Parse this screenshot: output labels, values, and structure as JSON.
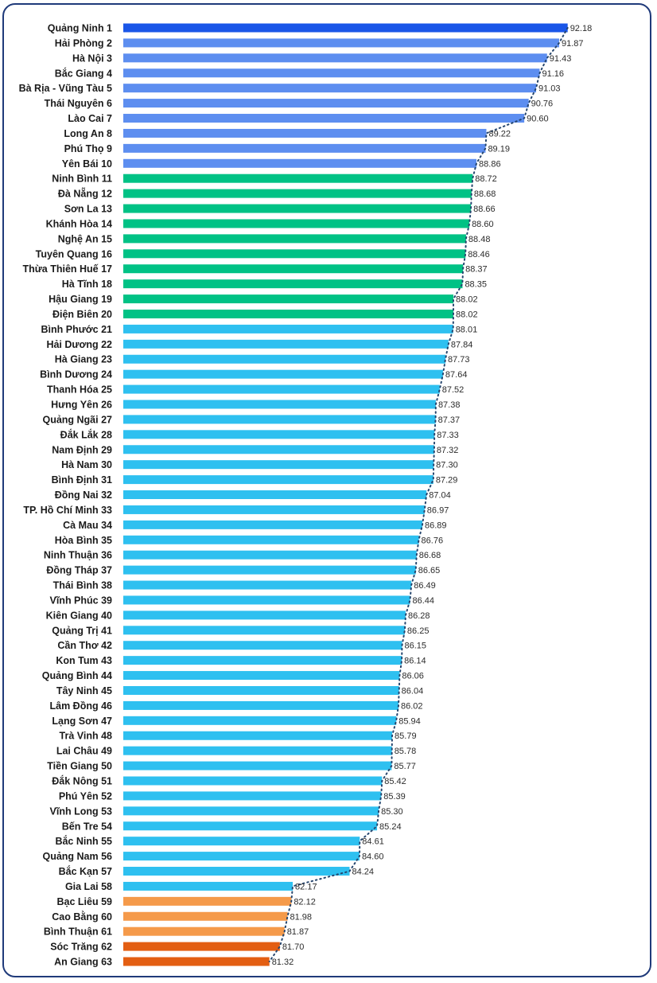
{
  "colors": {
    "top": "#1a56e8",
    "high": "#5d8ef0",
    "good": "#00c285",
    "mid": "#2ec0f0",
    "low": "#f59a4a",
    "bottom": "#e35e12",
    "frame": "#1f3a7a",
    "trend": "#26466e"
  },
  "chart_data": {
    "type": "bar",
    "orientation": "horizontal",
    "xlim": [
      76,
      93
    ],
    "grid": false,
    "trend_line": "dotted",
    "categories": [
      "Quảng Ninh 1",
      "Hải Phòng 2",
      "Hà Nội 3",
      "Bắc Giang 4",
      "Bà Rịa - Vũng Tàu 5",
      "Thái Nguyên 6",
      "Lào Cai 7",
      "Long An 8",
      "Phú Thọ 9",
      "Yên Bái 10",
      "Ninh Bình 11",
      "Đà Nẵng 12",
      "Sơn La 13",
      "Khánh Hòa 14",
      "Nghệ An 15",
      "Tuyên Quang 16",
      "Thừa Thiên Huế 17",
      "Hà Tĩnh 18",
      "Hậu Giang 19",
      "Điện Biên 20",
      "Bình Phước 21",
      "Hải Dương 22",
      "Hà Giang 23",
      "Bình Dương 24",
      "Thanh Hóa 25",
      "Hưng Yên 26",
      "Quảng Ngãi 27",
      "Đắk Lắk 28",
      "Nam Định 29",
      "Hà Nam 30",
      "Bình Định 31",
      "Đồng Nai 32",
      "TP. Hồ Chí Minh 33",
      "Cà Mau 34",
      "Hòa Bình 35",
      "Ninh Thuận 36",
      "Đồng Tháp 37",
      "Thái Bình 38",
      "Vĩnh Phúc 39",
      "Kiên Giang 40",
      "Quảng Trị 41",
      "Cần Thơ 42",
      "Kon Tum 43",
      "Quảng Bình 44",
      "Tây Ninh 45",
      "Lâm Đồng 46",
      "Lạng Sơn 47",
      "Trà Vinh 48",
      "Lai Châu 49",
      "Tiền Giang 50",
      "Đắk Nông 51",
      "Phú Yên 52",
      "Vĩnh Long 53",
      "Bến Tre 54",
      "Bắc Ninh 55",
      "Quảng Nam 56",
      "Bắc Kạn 57",
      "Gia Lai 58",
      "Bạc Liêu 59",
      "Cao Bằng 60",
      "Bình Thuận 61",
      "Sóc Trăng 62",
      "An Giang 63"
    ],
    "values": [
      92.18,
      91.87,
      91.43,
      91.16,
      91.03,
      90.76,
      90.6,
      89.22,
      89.19,
      88.86,
      88.72,
      88.68,
      88.66,
      88.6,
      88.48,
      88.46,
      88.37,
      88.35,
      88.02,
      88.02,
      88.01,
      87.84,
      87.73,
      87.64,
      87.52,
      87.38,
      87.37,
      87.33,
      87.32,
      87.3,
      87.29,
      87.04,
      86.97,
      86.89,
      86.76,
      86.68,
      86.65,
      86.49,
      86.44,
      86.28,
      86.25,
      86.15,
      86.14,
      86.06,
      86.04,
      86.02,
      85.94,
      85.79,
      85.78,
      85.77,
      85.42,
      85.39,
      85.3,
      85.24,
      84.61,
      84.6,
      84.24,
      82.17,
      82.12,
      81.98,
      81.87,
      81.7,
      81.32
    ],
    "value_labels": [
      "92.18",
      "91.87",
      "91.43",
      "91.16",
      "91.03",
      "90.76",
      "90.60",
      "89.22",
      "89.19",
      "88.86",
      "88.72",
      "88.68",
      "88.66",
      "88.60",
      "88.48",
      "88.46",
      "88.37",
      "88.35",
      "88.02",
      "88.02",
      "88.01",
      "87.84",
      "87.73",
      "87.64",
      "87.52",
      "87.38",
      "87.37",
      "87.33",
      "87.32",
      "87.30",
      "87.29",
      "87.04",
      "86.97",
      "86.89",
      "86.76",
      "86.68",
      "86.65",
      "86.49",
      "86.44",
      "86.28",
      "86.25",
      "86.15",
      "86.14",
      "86.06",
      "86.04",
      "86.02",
      "85.94",
      "85.79",
      "85.78",
      "85.77",
      "85.42",
      "85.39",
      "85.30",
      "85.24",
      "84.61",
      "84.60",
      "84.24",
      "82.17",
      "82.12",
      "81.98",
      "81.87",
      "81.70",
      "81.32"
    ],
    "color_groups": [
      "top",
      "high",
      "high",
      "high",
      "high",
      "high",
      "high",
      "high",
      "high",
      "high",
      "good",
      "good",
      "good",
      "good",
      "good",
      "good",
      "good",
      "good",
      "good",
      "good",
      "mid",
      "mid",
      "mid",
      "mid",
      "mid",
      "mid",
      "mid",
      "mid",
      "mid",
      "mid",
      "mid",
      "mid",
      "mid",
      "mid",
      "mid",
      "mid",
      "mid",
      "mid",
      "mid",
      "mid",
      "mid",
      "mid",
      "mid",
      "mid",
      "mid",
      "mid",
      "mid",
      "mid",
      "mid",
      "mid",
      "mid",
      "mid",
      "mid",
      "mid",
      "mid",
      "mid",
      "mid",
      "mid",
      "low",
      "low",
      "low",
      "bottom",
      "bottom"
    ]
  }
}
